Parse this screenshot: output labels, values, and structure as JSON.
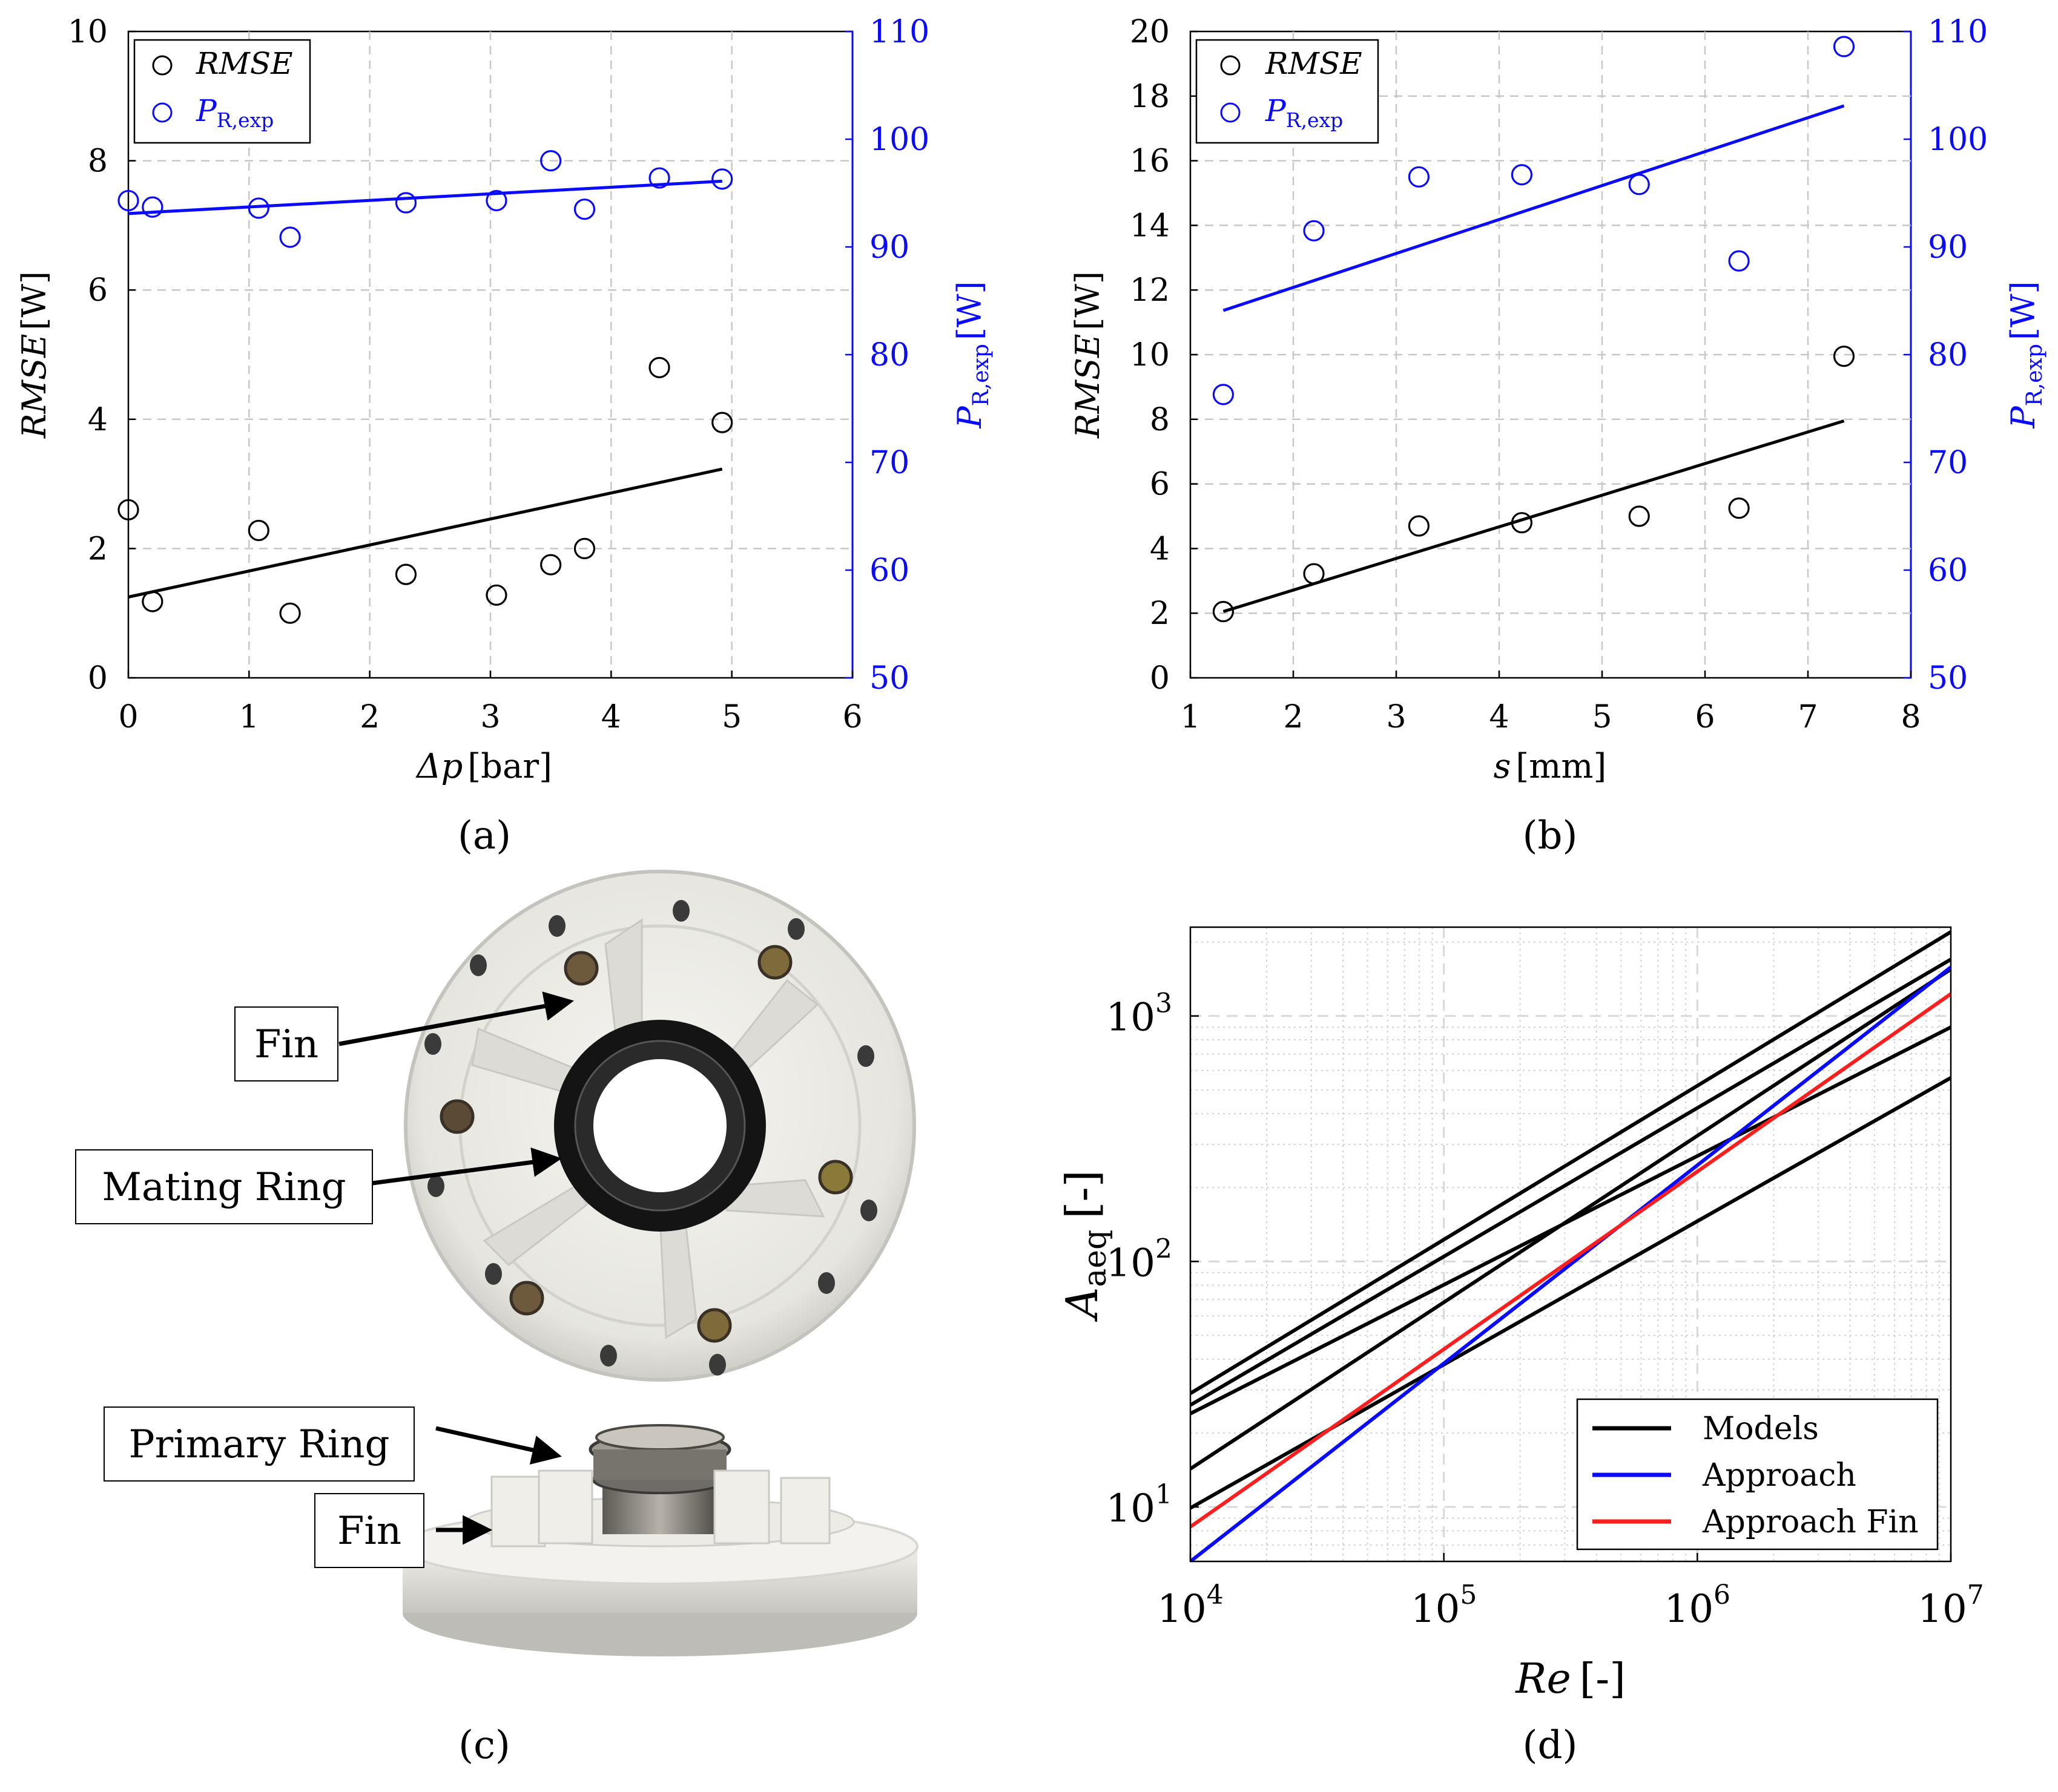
{
  "colors": {
    "black": "#000000",
    "blue": "#0a0aff",
    "red": "#ff1e1e",
    "grid": "#c8c8c8",
    "white_part": "#ecebe6",
    "white_shadow": "#c9c8c3",
    "seal_black": "#121212",
    "metal": "#8d8a84"
  },
  "chart_data": [
    {
      "id": "a",
      "panel_label": "(a)",
      "type": "scatter",
      "xlabel": {
        "symbol": "Δp",
        "unit": "[bar]"
      },
      "ylabel_left": {
        "symbol": "RMSE",
        "unit": "[W]"
      },
      "ylabel_right": {
        "symbol": "P",
        "sub": "R,exp",
        "unit": "[W]"
      },
      "xlim": [
        0,
        6
      ],
      "ylim_left": [
        0,
        10
      ],
      "ylim_right": [
        50,
        110
      ],
      "x_ticks": [
        "0",
        "1",
        "2",
        "3",
        "4",
        "5",
        "6"
      ],
      "y_ticks_left": [
        "0",
        "2",
        "4",
        "6",
        "8",
        "10"
      ],
      "y_ticks_right": [
        "50",
        "60",
        "70",
        "80",
        "90",
        "100",
        "110"
      ],
      "legend": [
        {
          "label": "RMSE",
          "italic": true
        },
        {
          "label": "P",
          "sub": "R,exp"
        }
      ],
      "series": [
        {
          "name": "RMSE",
          "axis": "left",
          "color": "black",
          "x": [
            0.0,
            0.2,
            1.08,
            1.34,
            2.3,
            3.05,
            3.5,
            3.78,
            4.4,
            4.92
          ],
          "y": [
            2.6,
            1.18,
            2.28,
            1.0,
            1.6,
            1.28,
            1.75,
            2.0,
            4.8,
            3.95
          ],
          "fit": [
            [
              0,
              1.25
            ],
            [
              4.92,
              3.23
            ]
          ]
        },
        {
          "name": "P_R,exp",
          "axis": "right",
          "color": "blue",
          "x": [
            0.0,
            0.2,
            1.08,
            1.34,
            2.3,
            3.05,
            3.5,
            3.78,
            4.4,
            4.92
          ],
          "y": [
            94.3,
            93.7,
            93.6,
            90.9,
            94.1,
            94.3,
            98.0,
            93.5,
            96.4,
            96.3
          ],
          "fit": [
            [
              0,
              93.1
            ],
            [
              4.92,
              96.1
            ]
          ]
        }
      ]
    },
    {
      "id": "b",
      "panel_label": "(b)",
      "type": "scatter",
      "xlabel": {
        "symbol": "s",
        "unit": "[mm]"
      },
      "ylabel_left": {
        "symbol": "RMSE",
        "unit": "[W]"
      },
      "ylabel_right": {
        "symbol": "P",
        "sub": "R,exp",
        "unit": "[W]"
      },
      "xlim": [
        1,
        8
      ],
      "ylim_left": [
        0,
        20
      ],
      "ylim_right": [
        50,
        110
      ],
      "x_ticks": [
        "1",
        "2",
        "3",
        "4",
        "5",
        "6",
        "7",
        "8"
      ],
      "y_ticks_left": [
        "0",
        "2",
        "4",
        "6",
        "8",
        "10",
        "12",
        "14",
        "16",
        "18",
        "20"
      ],
      "y_ticks_right": [
        "50",
        "60",
        "70",
        "80",
        "90",
        "100",
        "110"
      ],
      "legend": [
        {
          "label": "RMSE",
          "italic": true
        },
        {
          "label": "P",
          "sub": "R,exp"
        }
      ],
      "series": [
        {
          "name": "RMSE",
          "axis": "left",
          "color": "black",
          "x": [
            1.32,
            2.2,
            3.22,
            4.22,
            5.36,
            6.33,
            7.35
          ],
          "y": [
            2.05,
            3.22,
            4.7,
            4.8,
            5.0,
            5.25,
            9.95
          ],
          "fit": [
            [
              1.32,
              2.05
            ],
            [
              7.35,
              7.95
            ]
          ]
        },
        {
          "name": "P_R,exp",
          "axis": "right",
          "color": "blue",
          "x": [
            1.32,
            2.2,
            3.22,
            4.22,
            5.36,
            6.33,
            7.35
          ],
          "y": [
            76.3,
            91.5,
            96.5,
            96.7,
            95.8,
            88.7,
            108.6
          ],
          "fit": [
            [
              1.32,
              84.1
            ],
            [
              7.35,
              103.1
            ]
          ]
        }
      ]
    },
    {
      "id": "d",
      "panel_label": "(d)",
      "type": "line",
      "xscale": "log",
      "yscale": "log",
      "xlabel": {
        "symbol": "Re",
        "unit": "[-]"
      },
      "ylabel": {
        "symbol": "A",
        "sub": "aeq",
        "unit": "[-]"
      },
      "xlim": [
        10000,
        10000000
      ],
      "ylim": [
        6,
        2300
      ],
      "x_ticks": [
        {
          "base": "10",
          "exp": "4"
        },
        {
          "base": "10",
          "exp": "5"
        },
        {
          "base": "10",
          "exp": "6"
        },
        {
          "base": "10",
          "exp": "7"
        }
      ],
      "y_ticks": [
        {
          "base": "10",
          "exp": "1"
        },
        {
          "base": "10",
          "exp": "2"
        },
        {
          "base": "10",
          "exp": "3"
        }
      ],
      "legend": [
        "Models",
        "Approach",
        "Approach Fin"
      ],
      "series": [
        {
          "name": "Models",
          "color": "black",
          "x": [
            10000,
            10000000
          ],
          "y": [
            29,
            2200
          ]
        },
        {
          "name": "Models",
          "color": "black",
          "x": [
            10000,
            10000000
          ],
          "y": [
            26,
            1700
          ]
        },
        {
          "name": "Models",
          "color": "black",
          "x": [
            10000,
            10000000
          ],
          "y": [
            24,
            900
          ]
        },
        {
          "name": "Models",
          "color": "black",
          "x": [
            10000,
            10000000
          ],
          "y": [
            14.3,
            1550
          ]
        },
        {
          "name": "Models",
          "color": "black",
          "x": [
            10000,
            10000000
          ],
          "y": [
            9.9,
            560
          ]
        },
        {
          "name": "Approach",
          "color": "blue",
          "x": [
            10000,
            10000000
          ],
          "y": [
            6.0,
            1580
          ]
        },
        {
          "name": "Approach Fin",
          "color": "red",
          "x": [
            10000,
            10000000
          ],
          "y": [
            8.3,
            1230
          ]
        }
      ]
    }
  ],
  "photo_c": {
    "panel_label": "(c)",
    "labels": {
      "fin_top": "Fin",
      "mating_ring": "Mating Ring",
      "primary_ring": "Primary Ring",
      "fin_bottom": "Fin"
    }
  }
}
